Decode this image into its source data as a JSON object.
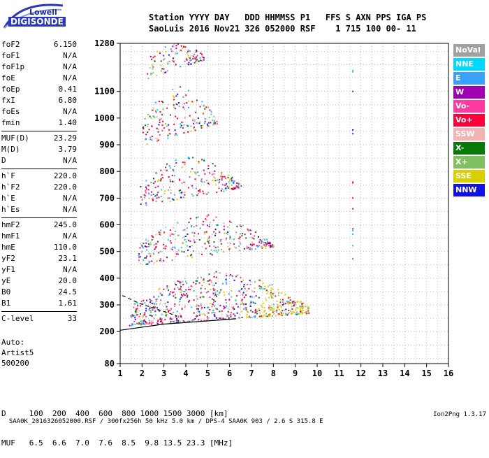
{
  "logo": {
    "line1": "Lowell",
    "line2": "DIGISONDE"
  },
  "header": {
    "line1": "Station YYYY DAY   DDD HHMMSS P1   FFS S AXN PPS IGA PS",
    "line2": "SaoLuis 2016 Nov21 326 052000 RSF    1 715 100 00- 11"
  },
  "params": {
    "group1": [
      {
        "name": "foF2",
        "value": "6.150"
      },
      {
        "name": "foF1",
        "value": "N/A"
      },
      {
        "name": "foF1p",
        "value": "N/A"
      },
      {
        "name": "foE",
        "value": "N/A"
      },
      {
        "name": "foEp",
        "value": "0.41"
      },
      {
        "name": "fxI",
        "value": "6.80"
      },
      {
        "name": "foEs",
        "value": "N/A"
      },
      {
        "name": "fmin",
        "value": "1.40"
      }
    ],
    "group2": [
      {
        "name": "MUF(D)",
        "value": "23.29"
      },
      {
        "name": "M(D)",
        "value": "3.79"
      },
      {
        "name": "D",
        "value": "N/A"
      }
    ],
    "group3": [
      {
        "name": "h`F",
        "value": "220.0"
      },
      {
        "name": "h`F2",
        "value": "220.0"
      },
      {
        "name": "h`E",
        "value": "N/A"
      },
      {
        "name": "h`Es",
        "value": "N/A"
      }
    ],
    "group4": [
      {
        "name": "hmF2",
        "value": "245.0"
      },
      {
        "name": "hmF1",
        "value": "N/A"
      },
      {
        "name": "hmE",
        "value": "110.0"
      },
      {
        "name": "yF2",
        "value": "23.1"
      },
      {
        "name": "yF1",
        "value": "N/A"
      },
      {
        "name": "yE",
        "value": "20.0"
      },
      {
        "name": "B0",
        "value": "24.5"
      },
      {
        "name": "B1",
        "value": "1.61"
      }
    ],
    "group5": [
      {
        "name": "C-level",
        "value": "33"
      }
    ]
  },
  "footer": {
    "line1": "Auto:",
    "line2": "Artist5",
    "line3": "500200"
  },
  "muf_table": {
    "d_row": "D     100  200  400  600  800 1000 1500 3000 [km]",
    "muf_row": "MUF   6.5  6.6  7.0  7.6  8.5  9.8 13.5 23.3 [MHz]"
  },
  "bottom": {
    "left": "SAA0K_2016326052000.RSF / 300fx256h 50 kHz 5.0 km / DPS-4 SAA0K 903 / 2.6 S 315.8 E",
    "right": "Ion2Png 1.3.17"
  },
  "legend": [
    {
      "label": "NoVal",
      "color": "#a0a0a0"
    },
    {
      "label": "NNE",
      "color": "#00d8ff"
    },
    {
      "label": "E",
      "color": "#3aa0ff"
    },
    {
      "label": "W",
      "color": "#a000b0"
    },
    {
      "label": "Vo-",
      "color": "#ff3aa0"
    },
    {
      "label": "Vo+",
      "color": "#ff0038"
    },
    {
      "label": "SSW",
      "color": "#f4b4b4"
    },
    {
      "label": "X-",
      "color": "#087808"
    },
    {
      "label": "X+",
      "color": "#80c060"
    },
    {
      "label": "SSE",
      "color": "#d8d000"
    },
    {
      "label": "NNW",
      "color": "#1010e8"
    }
  ],
  "chart_data": {
    "type": "scatter",
    "title": "",
    "xlabel": "",
    "ylabel": "",
    "xlim": [
      1,
      16
    ],
    "ylim": [
      80,
      1280
    ],
    "x_ticks": [
      1,
      2,
      3,
      4,
      5,
      6,
      7,
      8,
      9,
      10,
      11,
      12,
      13,
      14,
      15,
      16
    ],
    "y_ticks": [
      80,
      200,
      300,
      400,
      500,
      600,
      700,
      800,
      900,
      1000,
      1100,
      1280
    ],
    "grid": true,
    "legend_position": "right",
    "echo_bands": [
      {
        "order": 1,
        "x_range": [
          1.4,
          9.6
        ],
        "height_base": [
          225,
          270
        ],
        "height_top": [
          300,
          430
        ]
      },
      {
        "order": 2,
        "x_range": [
          1.8,
          8.0
        ],
        "height_base": [
          450,
          520
        ],
        "height_top": [
          530,
          640
        ]
      },
      {
        "order": 3,
        "x_range": [
          1.9,
          6.5
        ],
        "height_base": [
          670,
          740
        ],
        "height_top": [
          750,
          860
        ]
      },
      {
        "order": 4,
        "x_range": [
          2.0,
          5.4
        ],
        "height_base": [
          900,
          980
        ],
        "height_top": [
          1000,
          1120
        ]
      },
      {
        "order": 5,
        "x_range": [
          2.2,
          4.8
        ],
        "height_base": [
          1150,
          1220
        ],
        "height_top": [
          1240,
          1280
        ]
      }
    ],
    "trace_line": {
      "x": [
        1.0,
        3.0,
        6.3
      ],
      "y": [
        205,
        228,
        248
      ]
    },
    "dashed_line": {
      "x": [
        1.1,
        1.9,
        2.6,
        3.2,
        3.6
      ],
      "y": [
        335,
        305,
        286,
        270,
        258
      ]
    },
    "sparse_column_x": 11.6
  }
}
